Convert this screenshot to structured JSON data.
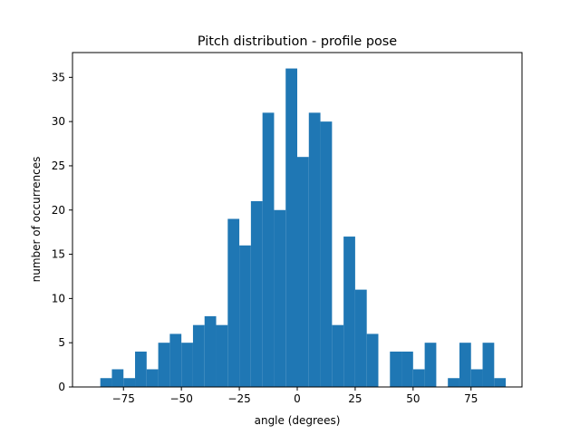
{
  "chart_data": {
    "type": "bar",
    "title": "Pitch distribution - profile pose",
    "xlabel": "angle (degrees)",
    "ylabel": "number of occurrences",
    "bar_color": "#1f77b4",
    "xlim": [
      -97,
      97
    ],
    "ylim": [
      0,
      37.8
    ],
    "xticks": [
      -75,
      -50,
      -25,
      0,
      25,
      50,
      75
    ],
    "xtick_labels": [
      "−75",
      "−50",
      "−25",
      "0",
      "25",
      "50",
      "75"
    ],
    "yticks": [
      0,
      5,
      10,
      15,
      20,
      25,
      30,
      35
    ],
    "ytick_labels": [
      "0",
      "5",
      "10",
      "15",
      "20",
      "25",
      "30",
      "35"
    ],
    "grid": false,
    "legend": "none",
    "bins": {
      "start": -85,
      "width": 5,
      "counts": [
        1,
        2,
        1,
        4,
        2,
        5,
        6,
        5,
        7,
        8,
        7,
        19,
        16,
        21,
        31,
        20,
        36,
        26,
        31,
        30,
        7,
        17,
        11,
        6,
        0,
        4,
        4,
        2,
        5,
        0,
        1,
        5,
        2,
        5,
        1
      ]
    }
  }
}
